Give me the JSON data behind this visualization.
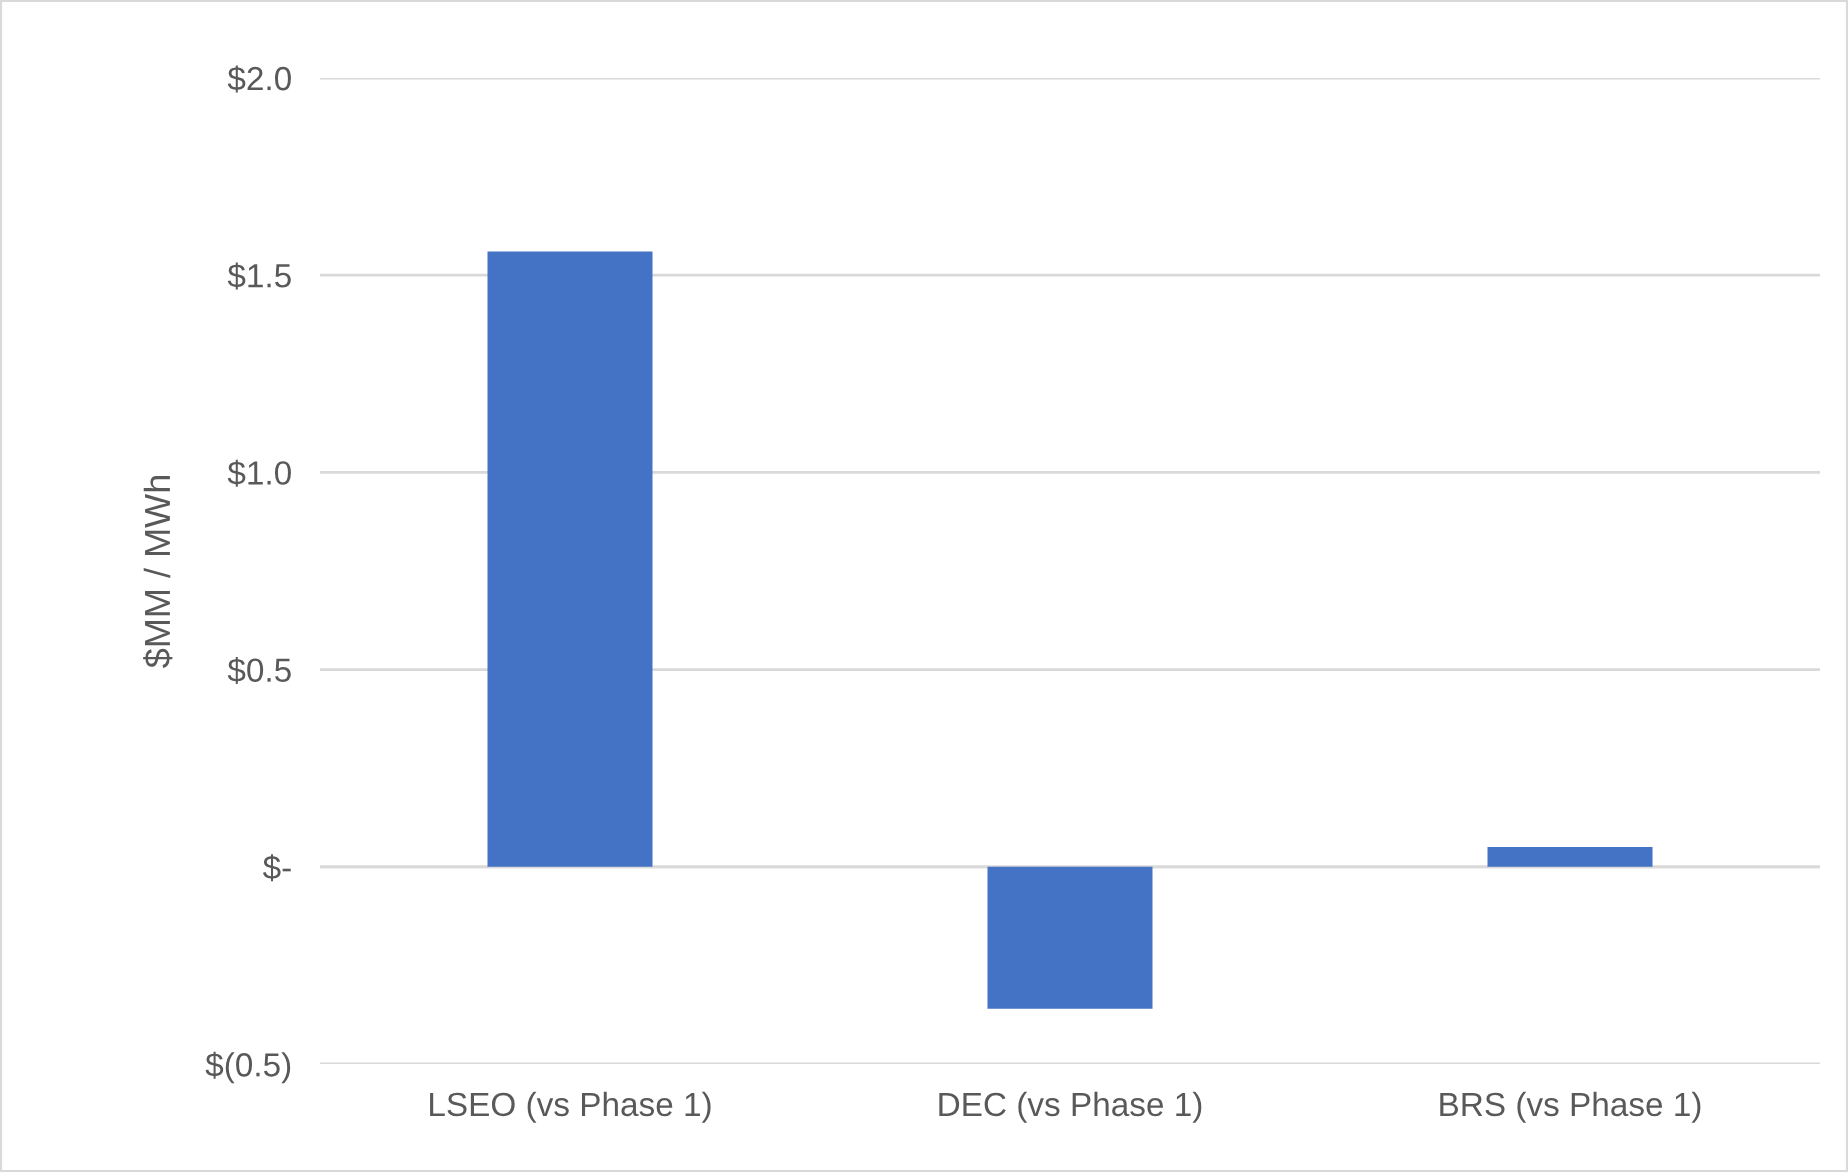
{
  "chart_data": {
    "type": "bar",
    "ylabel": "$MM / MWh",
    "categories": [
      "LSEO (vs Phase 1)",
      "DEC (vs Phase 1)",
      "BRS (vs Phase 1)"
    ],
    "values": [
      1.56,
      -0.36,
      0.05
    ],
    "color": "#4472c4",
    "ylim": [
      -0.5,
      2.0
    ],
    "yticks": [
      {
        "value": -0.5,
        "label": "$(0.5)"
      },
      {
        "value": 0,
        "label": "$-"
      },
      {
        "value": 0.5,
        "label": "$0.5"
      },
      {
        "value": 1.0,
        "label": "$1.0"
      },
      {
        "value": 1.5,
        "label": "$1.5"
      },
      {
        "value": 2.0,
        "label": "$2.0"
      }
    ],
    "grid": "y"
  }
}
